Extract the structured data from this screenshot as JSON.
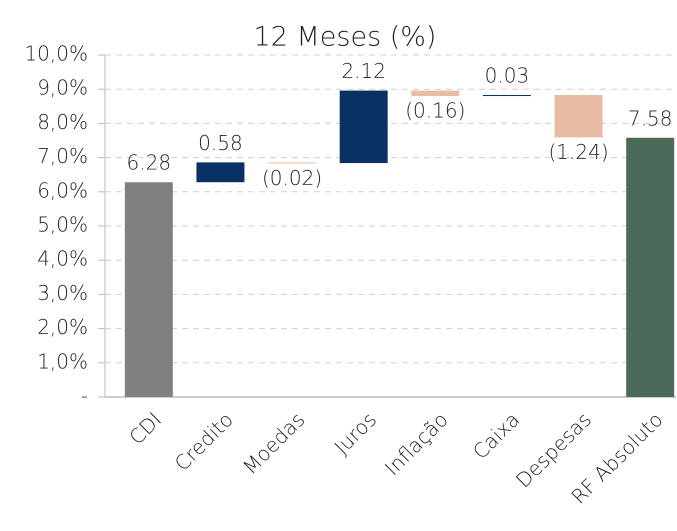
{
  "chart_data": {
    "type": "waterfall",
    "title": "12 Meses (%)",
    "categories": [
      "CDI",
      "Credito",
      "Moedas",
      "Juros",
      "Inflação",
      "Caixa",
      "Despesas",
      "RF Absoluto"
    ],
    "values": [
      6.28,
      0.58,
      -0.02,
      2.12,
      -0.16,
      0.03,
      -1.24,
      7.58
    ],
    "value_labels": [
      "6.28",
      "0.58",
      "(0.02)",
      "2.12",
      "(0.16)",
      "0.03",
      "(1.24)",
      "7.58"
    ],
    "measures": [
      "total",
      "relative",
      "relative",
      "relative",
      "relative",
      "relative",
      "relative",
      "total"
    ],
    "colors": [
      "#808080",
      "#0a3164",
      "#e8bba5",
      "#0a3164",
      "#e8bba5",
      "#0a3164",
      "#e8bba5",
      "#4a6b5a"
    ],
    "ylim": [
      0,
      10
    ],
    "yticks": [
      {
        "value": 0,
        "label": "-"
      },
      {
        "value": 1,
        "label": "1,0%"
      },
      {
        "value": 2,
        "label": "2,0%"
      },
      {
        "value": 3,
        "label": "3,0%"
      },
      {
        "value": 4,
        "label": "4,0%"
      },
      {
        "value": 5,
        "label": "5,0%"
      },
      {
        "value": 6,
        "label": "6,0%"
      },
      {
        "value": 7,
        "label": "7,0%"
      },
      {
        "value": 8,
        "label": "8,0%"
      },
      {
        "value": 9,
        "label": "9,0%"
      },
      {
        "value": 10,
        "label": "10,0%"
      }
    ],
    "grid": true
  }
}
